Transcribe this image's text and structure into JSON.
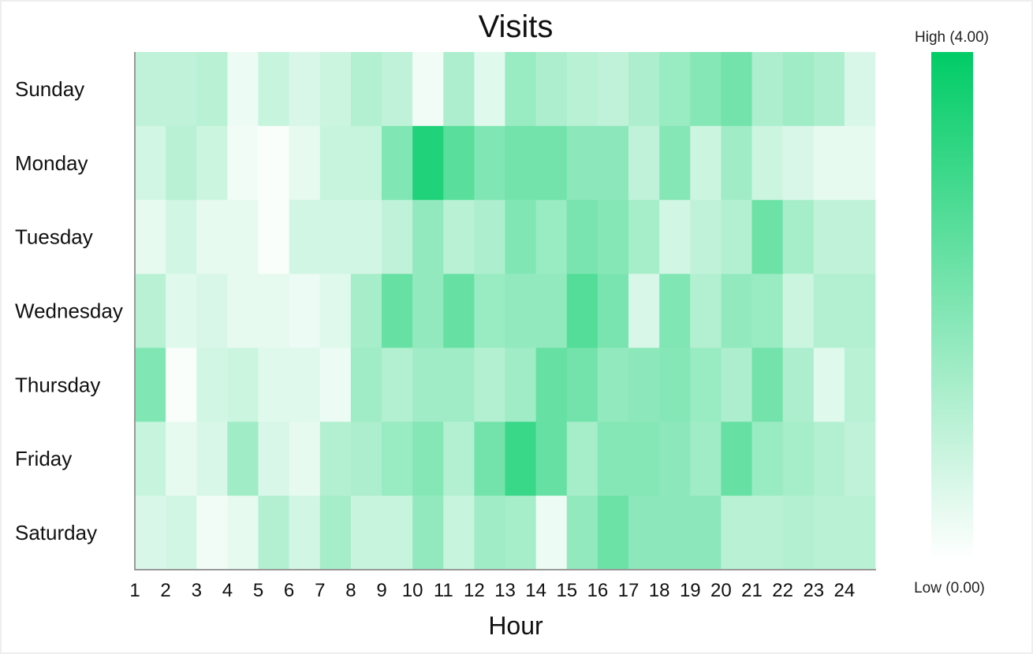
{
  "chart_data": {
    "type": "heatmap",
    "title": "Visits",
    "xlabel": "Hour",
    "ylabel": "",
    "x": [
      "1",
      "2",
      "3",
      "4",
      "5",
      "6",
      "7",
      "8",
      "9",
      "10",
      "11",
      "12",
      "13",
      "14",
      "15",
      "16",
      "17",
      "18",
      "19",
      "20",
      "21",
      "22",
      "23",
      "24"
    ],
    "y": [
      "Sunday",
      "Monday",
      "Tuesday",
      "Wednesday",
      "Thursday",
      "Friday",
      "Saturday"
    ],
    "value_range": [
      0,
      4
    ],
    "values": [
      [
        1.0,
        1.0,
        1.1,
        0.3,
        0.9,
        0.6,
        0.8,
        1.2,
        1.0,
        0.2,
        1.3,
        0.5,
        1.6,
        1.3,
        1.1,
        1.0,
        1.3,
        1.6,
        1.9,
        2.2,
        1.3,
        1.5,
        1.3,
        0.6
      ],
      [
        0.7,
        1.1,
        0.8,
        0.2,
        0.1,
        0.4,
        0.9,
        0.9,
        2.0,
        3.5,
        2.6,
        2.0,
        2.2,
        2.2,
        1.8,
        1.8,
        1.0,
        1.9,
        0.8,
        1.5,
        0.8,
        0.6,
        0.4,
        0.4
      ],
      [
        0.4,
        0.7,
        0.4,
        0.4,
        0.1,
        0.7,
        0.7,
        0.7,
        1.0,
        1.7,
        1.1,
        1.3,
        2.0,
        1.6,
        2.1,
        1.9,
        1.4,
        0.7,
        1.0,
        1.2,
        2.3,
        1.4,
        1.0,
        1.0
      ],
      [
        1.1,
        0.5,
        0.6,
        0.4,
        0.4,
        0.3,
        0.5,
        1.4,
        2.4,
        1.7,
        2.4,
        1.6,
        1.7,
        1.7,
        2.7,
        2.1,
        0.6,
        2.0,
        1.2,
        1.7,
        1.6,
        0.8,
        1.2,
        1.2
      ],
      [
        2.0,
        0.1,
        0.7,
        0.8,
        0.5,
        0.5,
        0.3,
        1.5,
        1.2,
        1.5,
        1.5,
        1.2,
        1.5,
        2.4,
        2.2,
        1.7,
        1.8,
        1.9,
        1.6,
        1.3,
        2.2,
        1.3,
        0.5,
        1.1
      ],
      [
        0.9,
        0.4,
        0.6,
        1.5,
        0.6,
        0.4,
        1.2,
        1.3,
        1.6,
        1.9,
        1.2,
        2.2,
        3.1,
        2.4,
        1.4,
        1.9,
        1.9,
        1.8,
        1.5,
        2.4,
        1.6,
        1.4,
        1.2,
        1.0
      ],
      [
        0.6,
        0.7,
        0.2,
        0.4,
        1.2,
        0.7,
        1.4,
        0.9,
        0.9,
        1.7,
        0.9,
        1.5,
        1.4,
        0.3,
        1.7,
        2.3,
        1.8,
        1.8,
        1.8,
        1.1,
        1.1,
        1.2,
        1.1,
        1.1
      ]
    ],
    "color_low": "#ffffff",
    "color_high": "#00cc66",
    "legend": {
      "placement": "right",
      "high_label": "High (4.00)",
      "low_label": "Low (0.00)"
    },
    "grid": false
  }
}
